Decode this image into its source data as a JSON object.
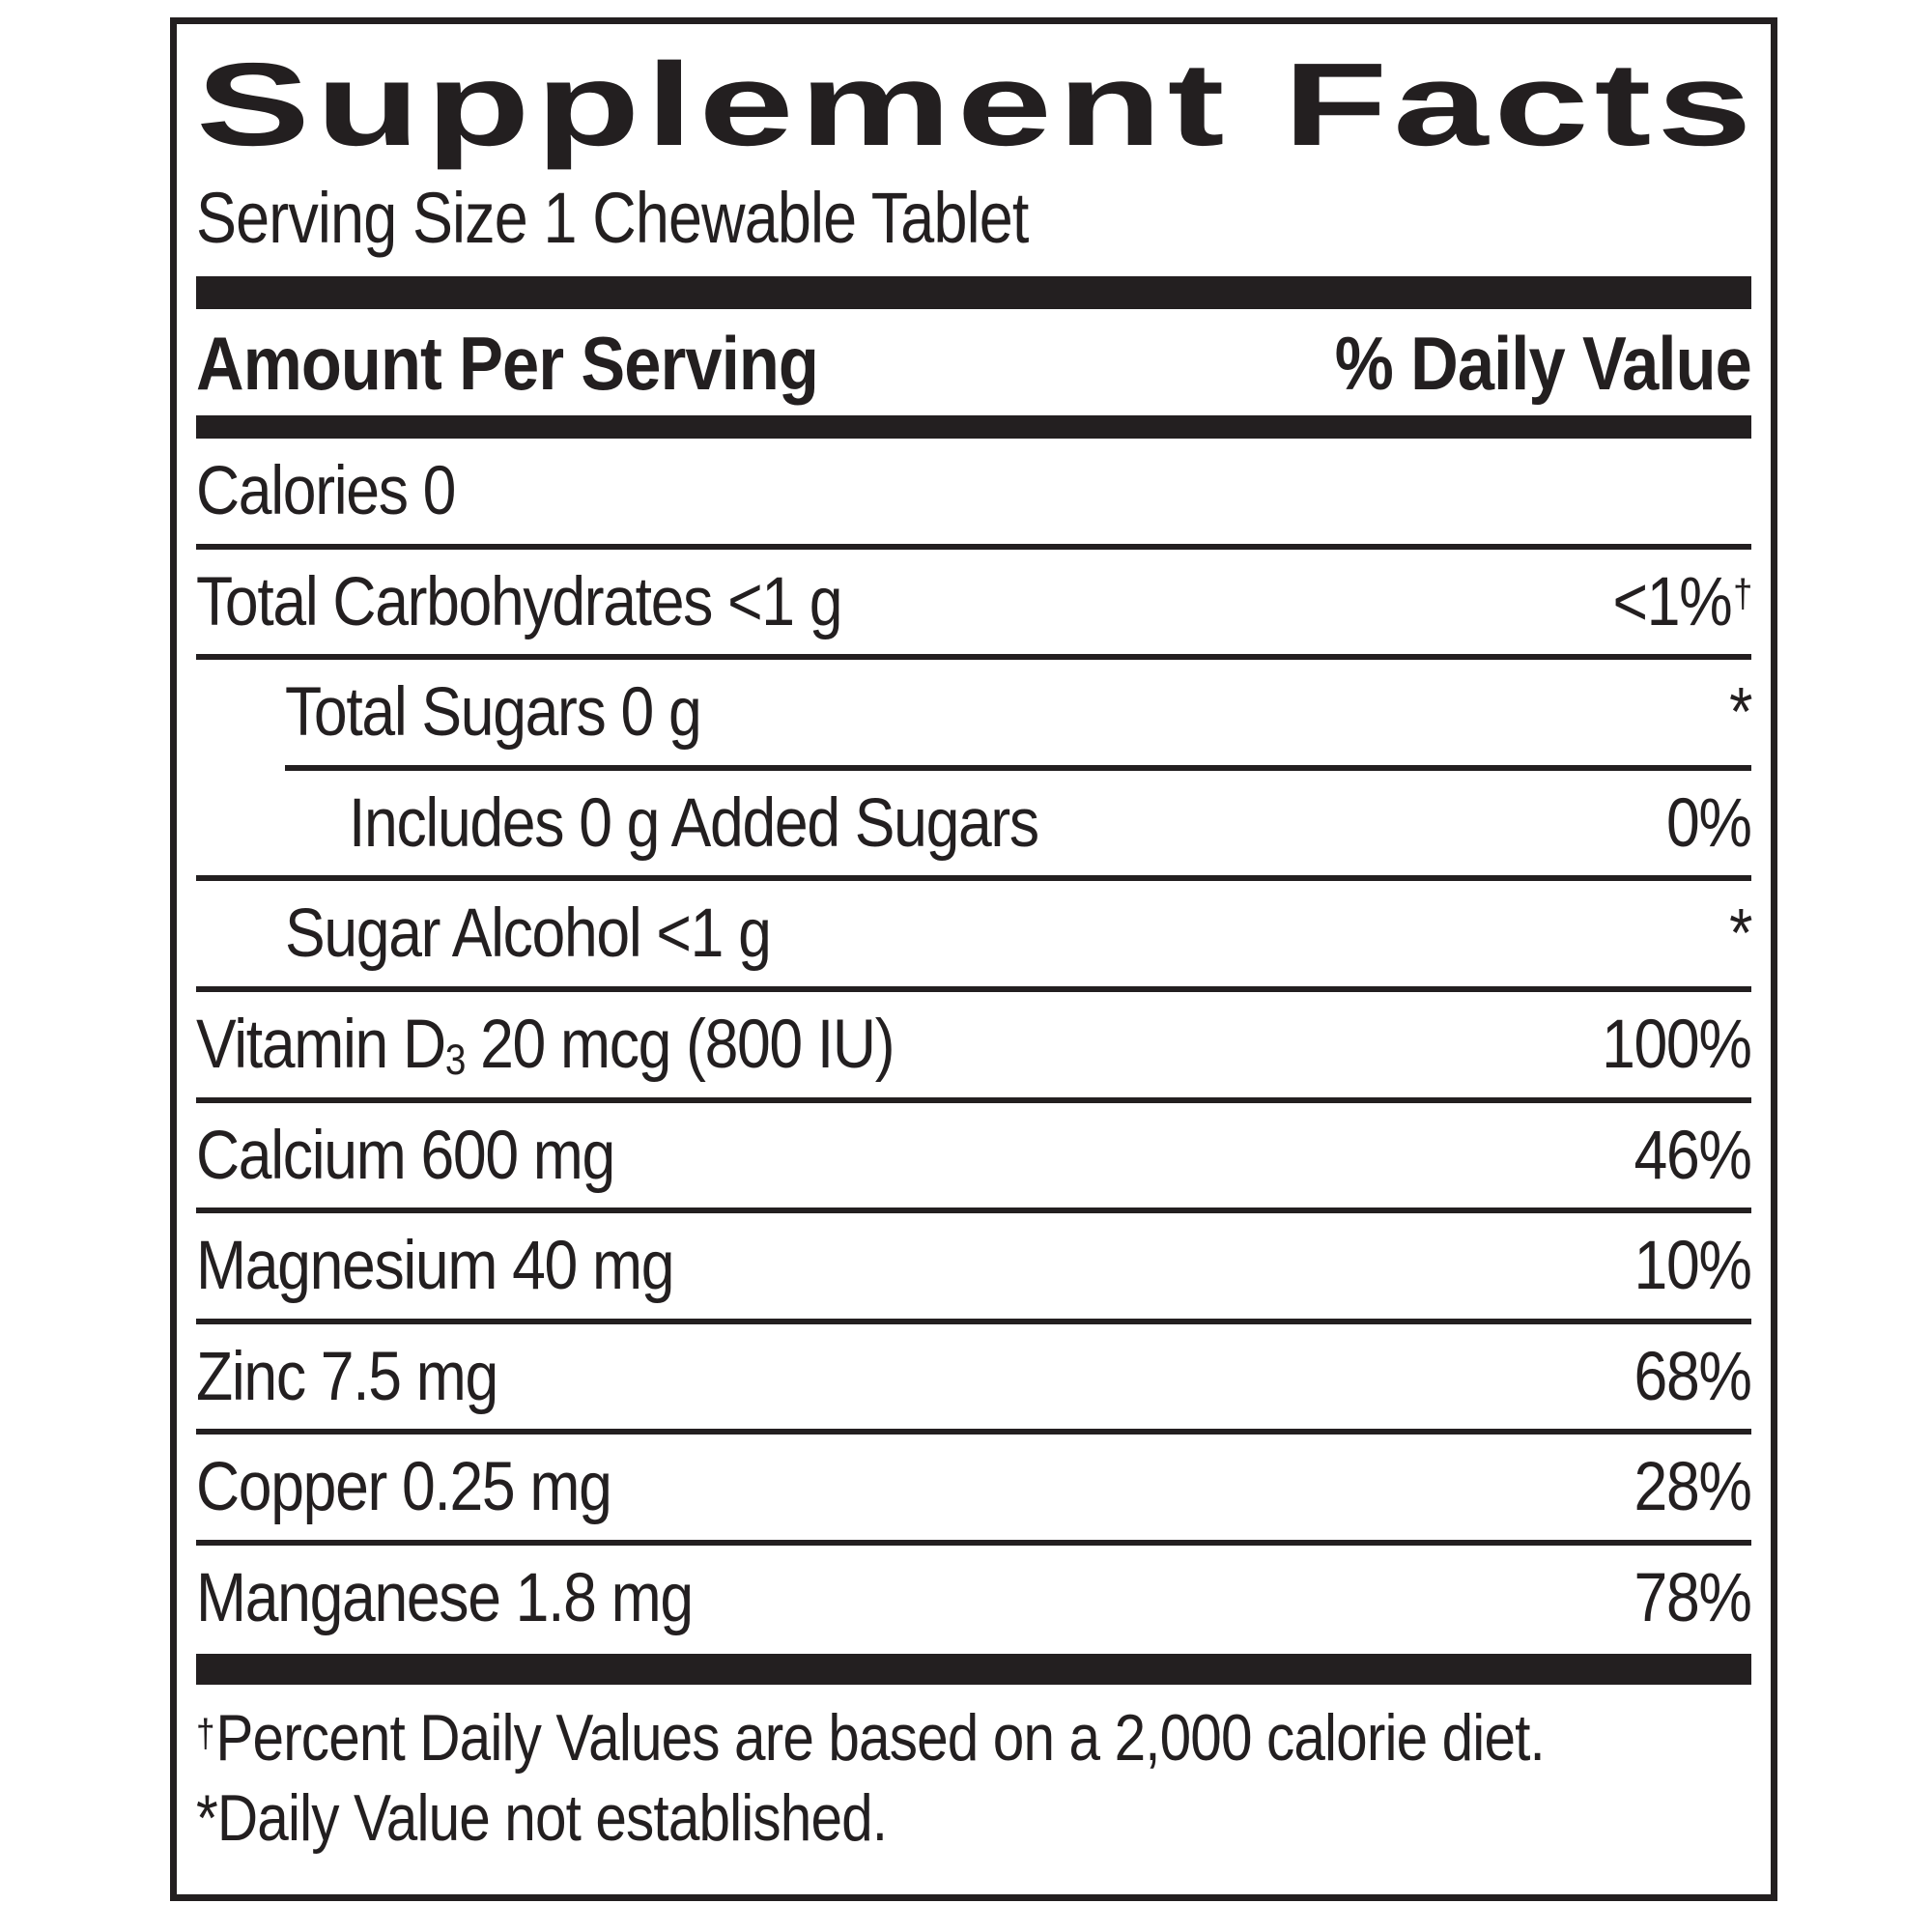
{
  "colors": {
    "ink": "#231f20",
    "background": "#ffffff"
  },
  "title": "Supplement Facts",
  "serving_size": "Serving Size 1 Chewable Tablet",
  "columns": {
    "amount": "Amount Per Serving",
    "daily_value": "% Daily Value"
  },
  "rows": [
    {
      "name": "Calories 0",
      "dv": ""
    },
    {
      "name": "Total Carbohydrates <1 g",
      "dv": "<1%",
      "dv_sup": "†"
    },
    {
      "name": "Total Sugars 0 g",
      "dv": "*"
    },
    {
      "name": "Includes 0 g Added Sugars",
      "dv": "0%"
    },
    {
      "name": "Sugar Alcohol <1 g",
      "dv": "*"
    },
    {
      "name_pre": "Vitamin D",
      "name_sub": "3",
      "name_post": " 20 mcg (800 IU)",
      "dv": "100%"
    },
    {
      "name": "Calcium 600 mg",
      "dv": "46%"
    },
    {
      "name": "Magnesium 40 mg",
      "dv": "10%"
    },
    {
      "name": "Zinc 7.5 mg",
      "dv": "68%"
    },
    {
      "name": "Copper 0.25 mg",
      "dv": "28%"
    },
    {
      "name": "Manganese 1.8 mg",
      "dv": "78%"
    }
  ],
  "footnotes": [
    {
      "symbol": "†",
      "text": "Percent Daily Values are based on a 2,000 calorie diet."
    },
    {
      "symbol": "*",
      "text": "Daily Value not established."
    }
  ]
}
